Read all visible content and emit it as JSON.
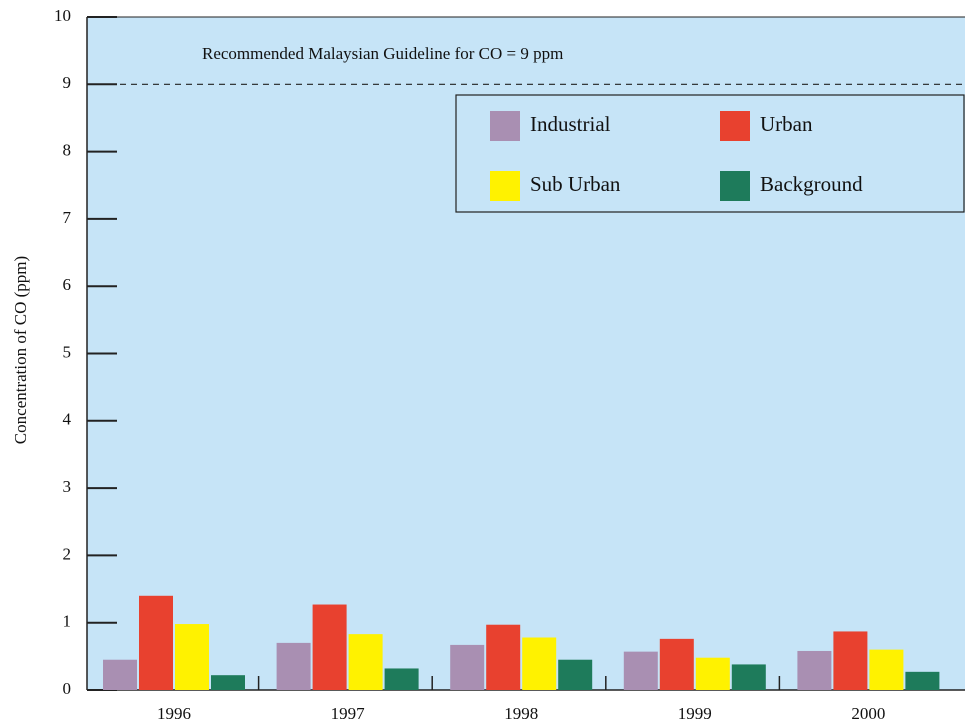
{
  "chart_data": {
    "type": "bar",
    "y_label": "Concentration of CO (ppm)",
    "annotation": "Recommended Malaysian Guideline for CO = 9 ppm",
    "guideline": 9,
    "categories": [
      "1996",
      "1997",
      "1998",
      "1999",
      "2000"
    ],
    "series": [
      {
        "name": "Industrial",
        "color": "#a98fb2",
        "values": [
          0.45,
          0.7,
          0.67,
          0.57,
          0.58
        ]
      },
      {
        "name": "Urban",
        "color": "#e8412f",
        "values": [
          1.4,
          1.27,
          0.97,
          0.76,
          0.87
        ]
      },
      {
        "name": "Sub Urban",
        "color": "#fff200",
        "values": [
          0.98,
          0.83,
          0.78,
          0.48,
          0.6
        ]
      },
      {
        "name": "Background",
        "color": "#1e7b5b",
        "values": [
          0.22,
          0.32,
          0.45,
          0.38,
          0.27
        ]
      }
    ],
    "ylim": [
      0,
      10
    ],
    "yticks": [
      0,
      1,
      2,
      3,
      4,
      5,
      6,
      7,
      8,
      9,
      10
    ],
    "background": "#c6e4f7"
  }
}
